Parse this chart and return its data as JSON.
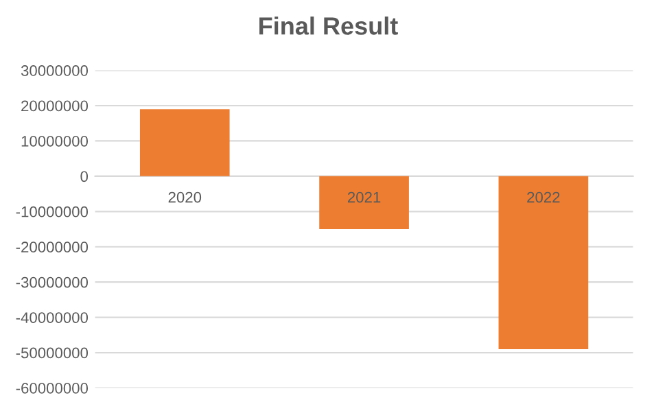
{
  "chart_data": {
    "type": "bar",
    "title": "Final Result",
    "categories": [
      "2020",
      "2021",
      "2022"
    ],
    "values": [
      19000000,
      -15000000,
      -49000000
    ],
    "color": "#ed7d31",
    "ylim": [
      -60000000,
      30000000
    ],
    "yticks": [
      -60000000,
      -50000000,
      -40000000,
      -30000000,
      -20000000,
      -10000000,
      0,
      10000000,
      20000000,
      30000000
    ],
    "grid": "y",
    "legend": false
  }
}
